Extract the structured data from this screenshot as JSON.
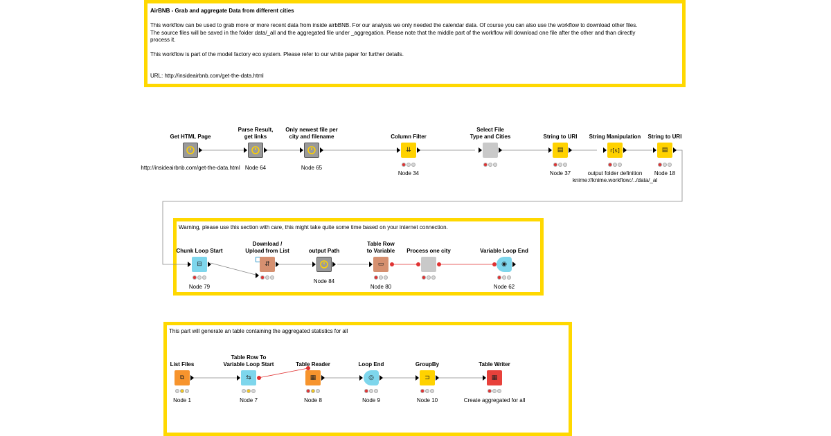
{
  "annotations": {
    "top": {
      "title": "AirBNB - Grab and aggregate Data from different cities",
      "line1": "This workflow can be used to grab more or more recent data from inside airbBNB. For our analysis we only needed the calendar data. Of course you can also use the workflow to download other files.",
      "line2": "The source files will be saved in the folder data/_all and the aggregated file under _aggregation. Please note that the middle part of the workflow will download one file after the other and than directly",
      "line3": "process it.",
      "line4": "This workflow is part of the model factory eco system. Please refer to our white paper for further details.",
      "line5": "URL: http://insideairbnb.com/get-the-data.html"
    },
    "middle": "Warning, please use this section with care, this might take quite some time based on your internet connection.",
    "bottom": "This part will generate an table containing the aggregated statistics for all"
  },
  "nodes": {
    "get_html_page": {
      "title": "Get HTML Page",
      "label": "http://insideairbnb.com/get-the-data.html",
      "icon": "metanode-icon"
    },
    "parse_result": {
      "title1": "Parse Result,",
      "title2": "get links",
      "label": "Node 64",
      "icon": "metanode-icon"
    },
    "only_newest": {
      "title1": "Only newest file per",
      "title2": "city and filename",
      "label": "Node 65",
      "icon": "metanode-icon"
    },
    "column_filter": {
      "title": "Column Filter",
      "label": "Node 34",
      "icon": "column-filter-icon"
    },
    "select_file": {
      "title1": "Select File",
      "title2": "Type and Cities",
      "label": "",
      "icon": "metanode-icon"
    },
    "string_to_uri_37": {
      "title": "String to URI",
      "label": "Node 37",
      "icon": "string-to-uri-icon"
    },
    "string_manipulation": {
      "title": "String Manipulation",
      "label1": "output folder definition",
      "label2": "knime://knime.workflow:/../data/_al",
      "icon": "string-manipulation-icon",
      "glyph": "r[s]"
    },
    "string_to_uri_18": {
      "title": "String to URI",
      "label": "Node 18",
      "icon": "string-to-uri-icon"
    },
    "chunk_loop_start": {
      "title": "Chunk Loop Start",
      "label": "Node 79",
      "icon": "loop-start-icon"
    },
    "download_upload": {
      "title1": "Download /",
      "title2": "Upload from List",
      "label": "",
      "icon": "download-icon"
    },
    "output_path": {
      "title": "output Path",
      "label": "Node 84",
      "icon": "metanode-icon"
    },
    "table_row_to_variable": {
      "title1": "Table Row",
      "title2": "to Variable",
      "label": "Node 80",
      "icon": "table-row-variable-icon"
    },
    "process_one_city": {
      "title": "Process one city",
      "label": "",
      "icon": "metanode-icon"
    },
    "variable_loop_end": {
      "title": "Variable Loop End",
      "label": "Node 62",
      "icon": "loop-end-icon"
    },
    "list_files": {
      "title": "List Files",
      "label": "Node 1",
      "icon": "list-files-icon"
    },
    "table_row_var_loop_start": {
      "title1": "Table Row To",
      "title2": "Variable Loop Start",
      "label": "Node 7",
      "icon": "loop-start-icon"
    },
    "table_reader": {
      "title": "Table Reader",
      "label": "Node 8",
      "icon": "table-reader-icon"
    },
    "loop_end": {
      "title": "Loop End",
      "label": "Node 9",
      "icon": "loop-end-icon"
    },
    "groupby": {
      "title": "GroupBy",
      "label": "Node 10",
      "icon": "groupby-icon"
    },
    "table_writer": {
      "title": "Table Writer",
      "label": "Create aggregated for all",
      "icon": "table-writer-icon"
    }
  },
  "colors": {
    "annotation_border": "#ffd800",
    "link_data": "#888888",
    "link_variable": "#e03232",
    "manipulator": "#ffd200",
    "loop": "#7ed6ec",
    "source": "#f7942d",
    "sink": "#e8413b"
  }
}
